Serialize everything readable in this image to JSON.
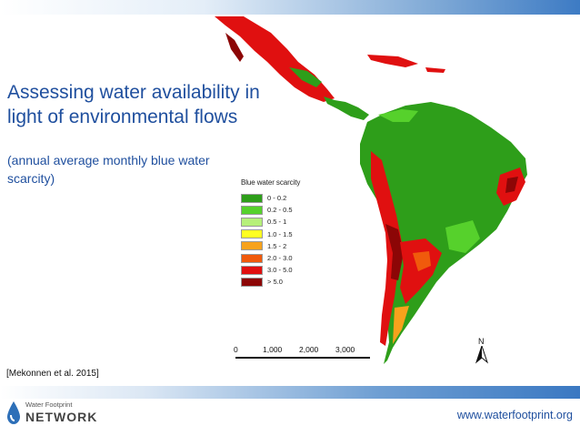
{
  "slide": {
    "title": "Assessing water availability in light of environmental flows",
    "subtitle": "(annual average monthly blue water scarcity)",
    "citation": "[Mekonnen et al. 2015]",
    "website": "www.waterfootprint.org"
  },
  "logo": {
    "line1": "Water Footprint",
    "line2": "NETWORK"
  },
  "map": {
    "region": "Latin America",
    "legend": {
      "title": "Blue water scarcity",
      "items": [
        {
          "label": "0 - 0.2",
          "color": "#2e9e1a"
        },
        {
          "label": "0.2 - 0.5",
          "color": "#56d12c"
        },
        {
          "label": "0.5 - 1",
          "color": "#b6f07a"
        },
        {
          "label": "1.0 - 1.5",
          "color": "#ffff22"
        },
        {
          "label": "1.5 - 2",
          "color": "#f7a21c"
        },
        {
          "label": "2.0 - 3.0",
          "color": "#f05a0c"
        },
        {
          "label": "3.0 - 5.0",
          "color": "#e01010"
        },
        {
          "label": "> 5.0",
          "color": "#8c0606"
        }
      ]
    },
    "scale": {
      "ticks": [
        "0",
        "1,000",
        "2,000",
        "3,000"
      ]
    },
    "north_label": "N"
  }
}
